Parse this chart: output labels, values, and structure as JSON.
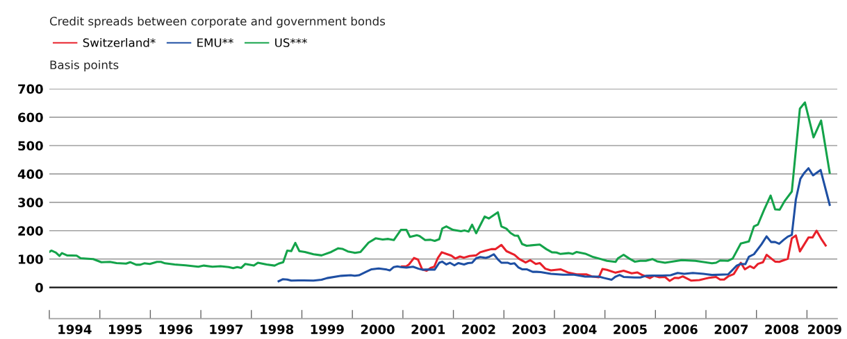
{
  "chart_data": {
    "type": "line",
    "title": "Credit spreads between corporate and government bonds",
    "ylabel": "Basis points",
    "legend": "top left",
    "grid": "y",
    "marker": "none",
    "line_style": "solid",
    "xlim": [
      1994,
      2009.6
    ],
    "ylim": [
      -110,
      700
    ],
    "yticks": [
      0,
      100,
      200,
      300,
      400,
      500,
      600,
      700
    ],
    "xticks": [
      {
        "value": 1994,
        "label": null
      },
      {
        "value": 1995,
        "label": null
      },
      {
        "value": 1996,
        "label": null
      },
      {
        "value": 1997,
        "label": null
      },
      {
        "value": 1998,
        "label": null
      },
      {
        "value": 1999,
        "label": null
      },
      {
        "value": 2000,
        "label": null
      },
      {
        "value": 2001,
        "label": null
      },
      {
        "value": 2002,
        "label": null
      },
      {
        "value": 2003,
        "label": null
      },
      {
        "value": 2004,
        "label": null
      },
      {
        "value": 2005,
        "label": null
      },
      {
        "value": 2006,
        "label": null
      },
      {
        "value": 2007,
        "label": null
      },
      {
        "value": 2008,
        "label": null
      },
      {
        "value": 2009,
        "label": null
      },
      {
        "value": 1994.5,
        "label": "1994"
      },
      {
        "value": 1995.5,
        "label": "1995"
      },
      {
        "value": 1996.5,
        "label": "1996"
      },
      {
        "value": 1997.5,
        "label": "1997"
      },
      {
        "value": 1998.5,
        "label": "1998"
      },
      {
        "value": 1999.5,
        "label": "1999"
      },
      {
        "value": 2000.5,
        "label": "2000"
      },
      {
        "value": 2001.5,
        "label": "2001"
      },
      {
        "value": 2002.5,
        "label": "2002"
      },
      {
        "value": 2003.5,
        "label": "2003"
      },
      {
        "value": 2004.5,
        "label": "2004"
      },
      {
        "value": 2005.5,
        "label": "2005"
      },
      {
        "value": 2006.5,
        "label": "2006"
      },
      {
        "value": 2007.5,
        "label": "2007"
      },
      {
        "value": 2008.5,
        "label": "2008"
      },
      {
        "value": 2009.35,
        "label": "2009"
      }
    ],
    "ref_lines": [
      {
        "axis": "y",
        "value": 0,
        "label": null,
        "color": "#1a1a1a",
        "line_style": "solid"
      }
    ],
    "series": [
      {
        "name": "Switzerland*",
        "color": "#e8202a",
        "x": [
          2000.98,
          2001.07,
          2001.12,
          2001.22,
          2001.3,
          2001.38,
          2001.47,
          2001.55,
          2001.62,
          2001.69,
          2001.77,
          2001.88,
          2001.96,
          2002.04,
          2002.13,
          2002.21,
          2002.32,
          2002.45,
          2002.53,
          2002.64,
          2002.75,
          2002.83,
          2002.95,
          2003.05,
          2003.21,
          2003.3,
          2003.43,
          2003.52,
          2003.63,
          2003.71,
          2003.82,
          2003.93,
          2004.12,
          2004.28,
          2004.44,
          2004.63,
          2004.74,
          2004.88,
          2004.95,
          2005.04,
          2005.21,
          2005.37,
          2005.53,
          2005.64,
          2005.75,
          2005.89,
          2005.97,
          2006.08,
          2006.19,
          2006.28,
          2006.38,
          2006.46,
          2006.54,
          2006.71,
          2006.87,
          2007.06,
          2007.2,
          2007.28,
          2007.36,
          2007.44,
          2007.55,
          2007.69,
          2007.77,
          2007.87,
          2007.95,
          2008.03,
          2008.13,
          2008.2,
          2008.37,
          2008.45,
          2008.62,
          2008.7,
          2008.78,
          2008.86,
          2009.03,
          2009.11,
          2009.19,
          2009.29,
          2009.37
        ],
        "values": [
          74,
          75,
          81,
          104,
          98,
          64,
          59,
          69,
          73,
          103,
          124,
          117,
          112,
          102,
          109,
          105,
          111,
          113,
          124,
          130,
          135,
          135,
          150,
          128,
          115,
          101,
          88,
          96,
          83,
          86,
          66,
          60,
          64,
          52,
          46,
          46,
          39,
          36,
          65,
          62,
          52,
          59,
          50,
          53,
          43,
          33,
          41,
          36,
          37,
          23,
          34,
          33,
          39,
          24,
          26,
          34,
          37,
          28,
          28,
          39,
          47,
          87,
          64,
          75,
          68,
          83,
          89,
          115,
          91,
          90,
          101,
          173,
          183,
          127,
          176,
          176,
          200,
          169,
          148
        ]
      },
      {
        "name": "EMU**",
        "color": "#1e4fa3",
        "x": [
          1998.54,
          1998.62,
          1998.71,
          1998.79,
          1998.93,
          1999.04,
          1999.23,
          1999.39,
          1999.5,
          1999.78,
          1999.97,
          2000.05,
          2000.13,
          2000.27,
          2000.38,
          2000.52,
          2000.68,
          2000.74,
          2000.82,
          2000.89,
          2000.96,
          2001.07,
          2001.2,
          2001.31,
          2001.4,
          2001.44,
          2001.63,
          2001.72,
          2001.78,
          2001.86,
          2001.93,
          2002.02,
          2002.1,
          2002.21,
          2002.29,
          2002.37,
          2002.45,
          2002.53,
          2002.64,
          2002.71,
          2002.8,
          2002.88,
          2002.95,
          2003.08,
          2003.13,
          2003.21,
          2003.29,
          2003.36,
          2003.45,
          2003.57,
          2003.65,
          2003.73,
          2003.93,
          2004.17,
          2004.39,
          2004.61,
          2004.88,
          2004.99,
          2005.13,
          2005.21,
          2005.29,
          2005.37,
          2005.59,
          2005.7,
          2005.81,
          2005.94,
          2006.14,
          2006.3,
          2006.44,
          2006.57,
          2006.74,
          2006.95,
          2007.12,
          2007.44,
          2007.61,
          2007.69,
          2007.78,
          2007.85,
          2007.95,
          2008.1,
          2008.2,
          2008.29,
          2008.37,
          2008.45,
          2008.54,
          2008.62,
          2008.7,
          2008.78,
          2008.87,
          2008.94,
          2009.03,
          2009.12,
          2009.27,
          2009.45
        ],
        "values": [
          22,
          29,
          28,
          24,
          25,
          25,
          24,
          27,
          33,
          41,
          43,
          41,
          43,
          55,
          64,
          67,
          63,
          60,
          72,
          74,
          72,
          70,
          73,
          66,
          62,
          63,
          63,
          87,
          91,
          81,
          87,
          78,
          86,
          81,
          86,
          87,
          103,
          107,
          104,
          108,
          117,
          99,
          87,
          87,
          83,
          85,
          70,
          64,
          64,
          55,
          55,
          54,
          48,
          45,
          45,
          38,
          38,
          33,
          27,
          38,
          44,
          37,
          35,
          35,
          41,
          42,
          42,
          43,
          51,
          48,
          51,
          48,
          44,
          46,
          77,
          83,
          82,
          108,
          117,
          152,
          180,
          160,
          160,
          154,
          168,
          179,
          185,
          310,
          383,
          402,
          420,
          395,
          414,
          291
        ]
      },
      {
        "name": "US***",
        "color": "#14a34a",
        "x": [
          1994.0,
          1994.04,
          1994.13,
          1994.2,
          1994.25,
          1994.35,
          1994.54,
          1994.62,
          1994.87,
          1995.03,
          1995.2,
          1995.33,
          1995.52,
          1995.6,
          1995.72,
          1995.8,
          1995.88,
          1995.99,
          1996.13,
          1996.21,
          1996.29,
          1996.48,
          1996.7,
          1996.95,
          1997.06,
          1997.23,
          1997.39,
          1997.55,
          1997.64,
          1997.72,
          1997.8,
          1997.88,
          1998.05,
          1998.13,
          1998.3,
          1998.46,
          1998.54,
          1998.63,
          1998.71,
          1998.79,
          1998.87,
          1998.95,
          1999.06,
          1999.23,
          1999.39,
          1999.58,
          1999.72,
          1999.8,
          1999.91,
          2000.05,
          2000.16,
          2000.32,
          2000.46,
          2000.6,
          2000.71,
          2000.82,
          2000.96,
          2001.07,
          2001.14,
          2001.28,
          2001.33,
          2001.44,
          2001.55,
          2001.63,
          2001.72,
          2001.78,
          2001.86,
          2001.99,
          2002.15,
          2002.22,
          2002.3,
          2002.37,
          2002.45,
          2002.62,
          2002.7,
          2002.88,
          2002.95,
          2003.05,
          2003.13,
          2003.21,
          2003.28,
          2003.36,
          2003.45,
          2003.71,
          2003.84,
          2003.95,
          2004.04,
          2004.12,
          2004.28,
          2004.36,
          2004.44,
          2004.61,
          2004.77,
          2004.88,
          2005.04,
          2005.21,
          2005.26,
          2005.37,
          2005.48,
          2005.59,
          2005.7,
          2005.81,
          2005.94,
          2006.03,
          2006.19,
          2006.3,
          2006.52,
          2006.79,
          2007.12,
          2007.2,
          2007.28,
          2007.44,
          2007.53,
          2007.69,
          2007.85,
          2007.95,
          2008.03,
          2008.15,
          2008.28,
          2008.37,
          2008.46,
          2008.56,
          2008.7,
          2008.86,
          2008.96,
          2009.13,
          2009.28,
          2009.45
        ],
        "values": [
          125,
          130,
          123,
          111,
          121,
          113,
          112,
          103,
          100,
          89,
          90,
          86,
          84,
          89,
          80,
          80,
          85,
          83,
          90,
          90,
          85,
          81,
          78,
          73,
          77,
          73,
          75,
          72,
          68,
          72,
          69,
          83,
          77,
          87,
          81,
          77,
          84,
          89,
          130,
          128,
          157,
          128,
          125,
          117,
          113,
          125,
          138,
          136,
          127,
          122,
          125,
          158,
          173,
          169,
          171,
          167,
          203,
          203,
          178,
          184,
          181,
          167,
          168,
          164,
          170,
          208,
          215,
          203,
          198,
          201,
          197,
          221,
          191,
          250,
          243,
          265,
          215,
          207,
          192,
          183,
          182,
          153,
          147,
          151,
          135,
          124,
          123,
          118,
          121,
          118,
          125,
          119,
          107,
          102,
          94,
          90,
          103,
          115,
          102,
          91,
          94,
          94,
          100,
          92,
          87,
          90,
          96,
          94,
          85,
          87,
          95,
          94,
          102,
          155,
          162,
          215,
          222,
          273,
          324,
          275,
          274,
          305,
          338,
          630,
          652,
          529,
          588,
          404
        ]
      }
    ]
  }
}
